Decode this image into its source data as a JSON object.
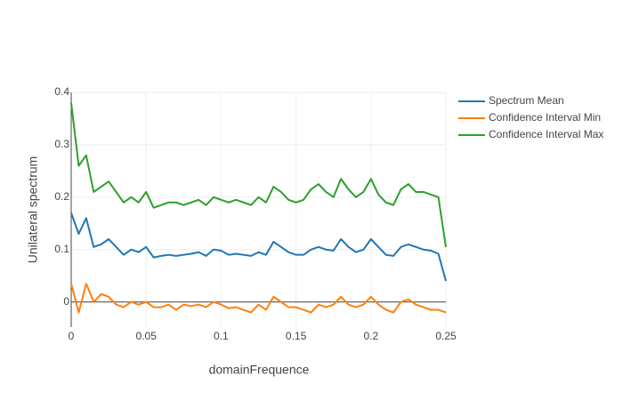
{
  "chart_data": {
    "type": "line",
    "xlabel": "domainFrequence",
    "ylabel": "Unilateral spectrum",
    "x": [
      0,
      0.005,
      0.01,
      0.015,
      0.02,
      0.025,
      0.03,
      0.035,
      0.04,
      0.045,
      0.05,
      0.055,
      0.06,
      0.065,
      0.07,
      0.075,
      0.08,
      0.085,
      0.09,
      0.095,
      0.1,
      0.105,
      0.11,
      0.115,
      0.12,
      0.125,
      0.13,
      0.135,
      0.14,
      0.145,
      0.15,
      0.155,
      0.16,
      0.165,
      0.17,
      0.175,
      0.18,
      0.185,
      0.19,
      0.195,
      0.2,
      0.205,
      0.21,
      0.215,
      0.22,
      0.225,
      0.23,
      0.235,
      0.24,
      0.245,
      0.25
    ],
    "series": [
      {
        "name": "Spectrum Mean",
        "color": "#1f77b4",
        "values": [
          0.17,
          0.13,
          0.16,
          0.105,
          0.11,
          0.12,
          0.105,
          0.09,
          0.1,
          0.095,
          0.105,
          0.085,
          0.088,
          0.09,
          0.088,
          0.09,
          0.092,
          0.095,
          0.088,
          0.1,
          0.098,
          0.09,
          0.092,
          0.09,
          0.088,
          0.095,
          0.09,
          0.115,
          0.105,
          0.095,
          0.09,
          0.09,
          0.1,
          0.105,
          0.1,
          0.098,
          0.12,
          0.105,
          0.095,
          0.1,
          0.12,
          0.105,
          0.09,
          0.088,
          0.105,
          0.11,
          0.105,
          0.1,
          0.098,
          0.092,
          0.04
        ]
      },
      {
        "name": "Confidence Interval Min",
        "color": "#ff7f0e",
        "values": [
          0.035,
          -0.02,
          0.035,
          0.0,
          0.015,
          0.01,
          -0.005,
          -0.01,
          0.0,
          -0.005,
          0.0,
          -0.01,
          -0.01,
          -0.005,
          -0.015,
          -0.005,
          -0.008,
          -0.005,
          -0.01,
          0.0,
          -0.005,
          -0.012,
          -0.01,
          -0.015,
          -0.02,
          -0.005,
          -0.015,
          0.01,
          0.0,
          -0.01,
          -0.01,
          -0.015,
          -0.02,
          -0.005,
          -0.01,
          -0.005,
          0.01,
          -0.005,
          -0.01,
          -0.005,
          0.01,
          -0.005,
          -0.015,
          -0.02,
          0,
          0.005,
          -0.005,
          -0.01,
          -0.015,
          -0.015,
          -0.02
        ]
      },
      {
        "name": "Confidence Interval Max",
        "color": "#2ca02c",
        "values": [
          0.38,
          0.26,
          0.28,
          0.21,
          0.22,
          0.23,
          0.21,
          0.19,
          0.2,
          0.19,
          0.21,
          0.18,
          0.185,
          0.19,
          0.19,
          0.185,
          0.19,
          0.195,
          0.185,
          0.2,
          0.195,
          0.19,
          0.195,
          0.19,
          0.185,
          0.2,
          0.19,
          0.22,
          0.21,
          0.195,
          0.19,
          0.195,
          0.215,
          0.225,
          0.21,
          0.2,
          0.235,
          0.215,
          0.2,
          0.21,
          0.235,
          0.205,
          0.19,
          0.185,
          0.215,
          0.225,
          0.21,
          0.21,
          0.205,
          0.2,
          0.105
        ]
      }
    ],
    "xlim": [
      0,
      0.25
    ],
    "xticks": [
      0,
      0.05,
      0.1,
      0.15,
      0.2,
      0.25
    ],
    "ylim": [
      -0.048,
      0.4
    ],
    "yticks": [
      0,
      0.1,
      0.2,
      0.3,
      0.4
    ],
    "grid": true,
    "legend": "top-right"
  }
}
